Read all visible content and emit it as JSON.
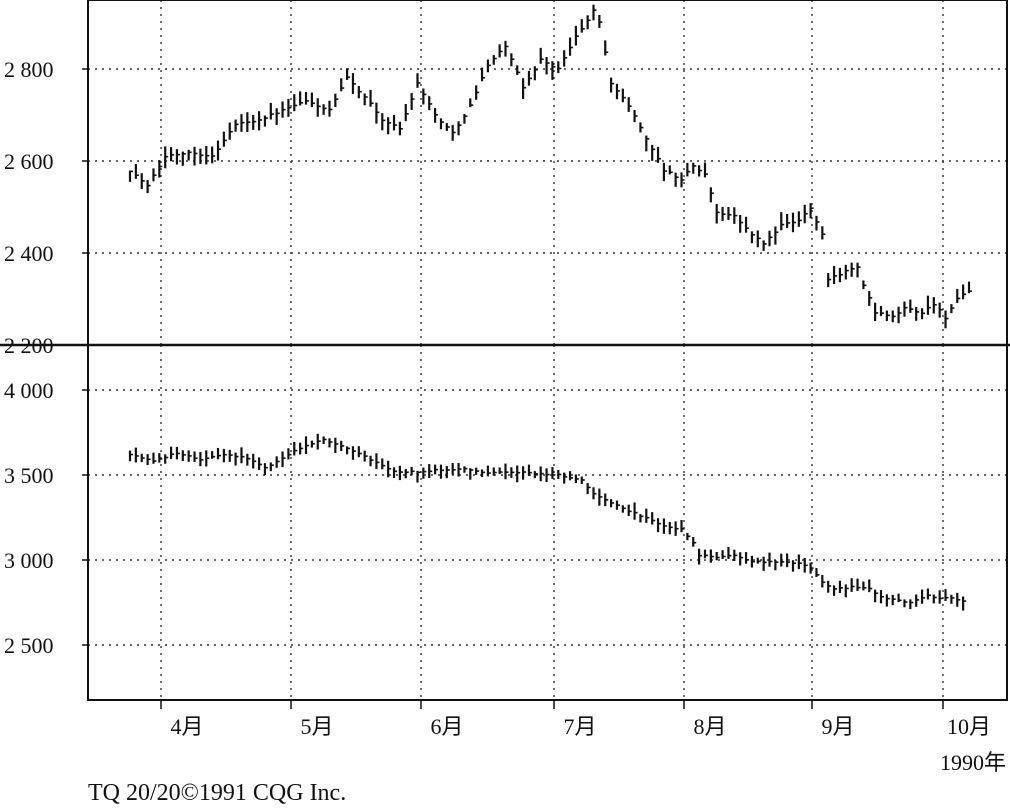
{
  "chart_data": [
    {
      "type": "bar",
      "style": "ohlc",
      "ylim": [
        2200,
        2950
      ],
      "yticks": [
        2200,
        2400,
        2600,
        2800
      ],
      "ytick_labels": [
        "2 200",
        "2 400",
        "2 600",
        "2 800"
      ],
      "xticks": [
        "4月",
        "5月",
        "6月",
        "7月",
        "8月",
        "9月",
        "10月"
      ],
      "grid": true,
      "series": [
        {
          "anchors": [
            [
              0,
              2580
            ],
            [
              3,
              2545
            ],
            [
              6,
              2610
            ],
            [
              10,
              2620
            ],
            [
              14,
              2610
            ],
            [
              18,
              2680
            ],
            [
              22,
              2690
            ],
            [
              26,
              2710
            ],
            [
              30,
              2730
            ],
            [
              34,
              2710
            ],
            [
              37,
              2780
            ],
            [
              40,
              2740
            ],
            [
              43,
              2690
            ],
            [
              46,
              2670
            ],
            [
              49,
              2770
            ],
            [
              52,
              2700
            ],
            [
              55,
              2660
            ],
            [
              58,
              2720
            ],
            [
              61,
              2810
            ],
            [
              64,
              2850
            ],
            [
              67,
              2760
            ],
            [
              70,
              2820
            ],
            [
              73,
              2800
            ],
            [
              76,
              2870
            ],
            [
              78,
              2905
            ],
            [
              79,
              2930
            ],
            [
              80,
              2900
            ],
            [
              82,
              2770
            ],
            [
              85,
              2720
            ],
            [
              88,
              2650
            ],
            [
              91,
              2580
            ],
            [
              94,
              2560
            ],
            [
              96,
              2590
            ],
            [
              98,
              2570
            ],
            [
              100,
              2490
            ],
            [
              103,
              2480
            ],
            [
              106,
              2440
            ],
            [
              108,
              2420
            ],
            [
              111,
              2460
            ],
            [
              114,
              2470
            ],
            [
              116,
              2500
            ],
            [
              118,
              2440
            ],
            [
              119,
              2345
            ],
            [
              122,
              2360
            ],
            [
              124,
              2370
            ],
            [
              125,
              2330
            ],
            [
              127,
              2270
            ],
            [
              130,
              2260
            ],
            [
              132,
              2280
            ],
            [
              135,
              2270
            ],
            [
              137,
              2290
            ],
            [
              139,
              2260
            ],
            [
              141,
              2300
            ],
            [
              143,
              2315
            ]
          ]
        }
      ]
    },
    {
      "type": "bar",
      "style": "ohlc",
      "ylim": [
        2200,
        4100
      ],
      "yticks": [
        2500,
        3000,
        3500,
        4000
      ],
      "ytick_labels": [
        "2 500",
        "3 000",
        "3 500",
        "4 000"
      ],
      "xticks": [
        "4月",
        "5月",
        "6月",
        "7月",
        "8月",
        "9月",
        "10月"
      ],
      "grid": true,
      "series": [
        {
          "anchors": [
            [
              0,
              3620
            ],
            [
              4,
              3580
            ],
            [
              8,
              3630
            ],
            [
              12,
              3590
            ],
            [
              16,
              3620
            ],
            [
              20,
              3600
            ],
            [
              23,
              3540
            ],
            [
              26,
              3600
            ],
            [
              29,
              3660
            ],
            [
              33,
              3710
            ],
            [
              37,
              3660
            ],
            [
              41,
              3590
            ],
            [
              45,
              3520
            ],
            [
              49,
              3520
            ],
            [
              53,
              3530
            ],
            [
              57,
              3540
            ],
            [
              61,
              3510
            ],
            [
              65,
              3520
            ],
            [
              69,
              3510
            ],
            [
              73,
              3500
            ],
            [
              75,
              3480
            ],
            [
              77,
              3470
            ],
            [
              79,
              3390
            ],
            [
              83,
              3320
            ],
            [
              87,
              3260
            ],
            [
              91,
              3200
            ],
            [
              94,
              3180
            ],
            [
              96,
              3100
            ],
            [
              97,
              3030
            ],
            [
              100,
              3010
            ],
            [
              103,
              3030
            ],
            [
              106,
              2990
            ],
            [
              110,
              2990
            ],
            [
              114,
              2980
            ],
            [
              116,
              2950
            ],
            [
              118,
              2870
            ],
            [
              120,
              2830
            ],
            [
              123,
              2840
            ],
            [
              126,
              2830
            ],
            [
              128,
              2780
            ],
            [
              131,
              2760
            ],
            [
              133,
              2750
            ],
            [
              136,
              2790
            ],
            [
              138,
              2770
            ],
            [
              140,
              2780
            ],
            [
              142,
              2760
            ]
          ]
        }
      ]
    }
  ],
  "year_label": "1990年",
  "credit": "TQ 20/20©1991 CQG Inc."
}
